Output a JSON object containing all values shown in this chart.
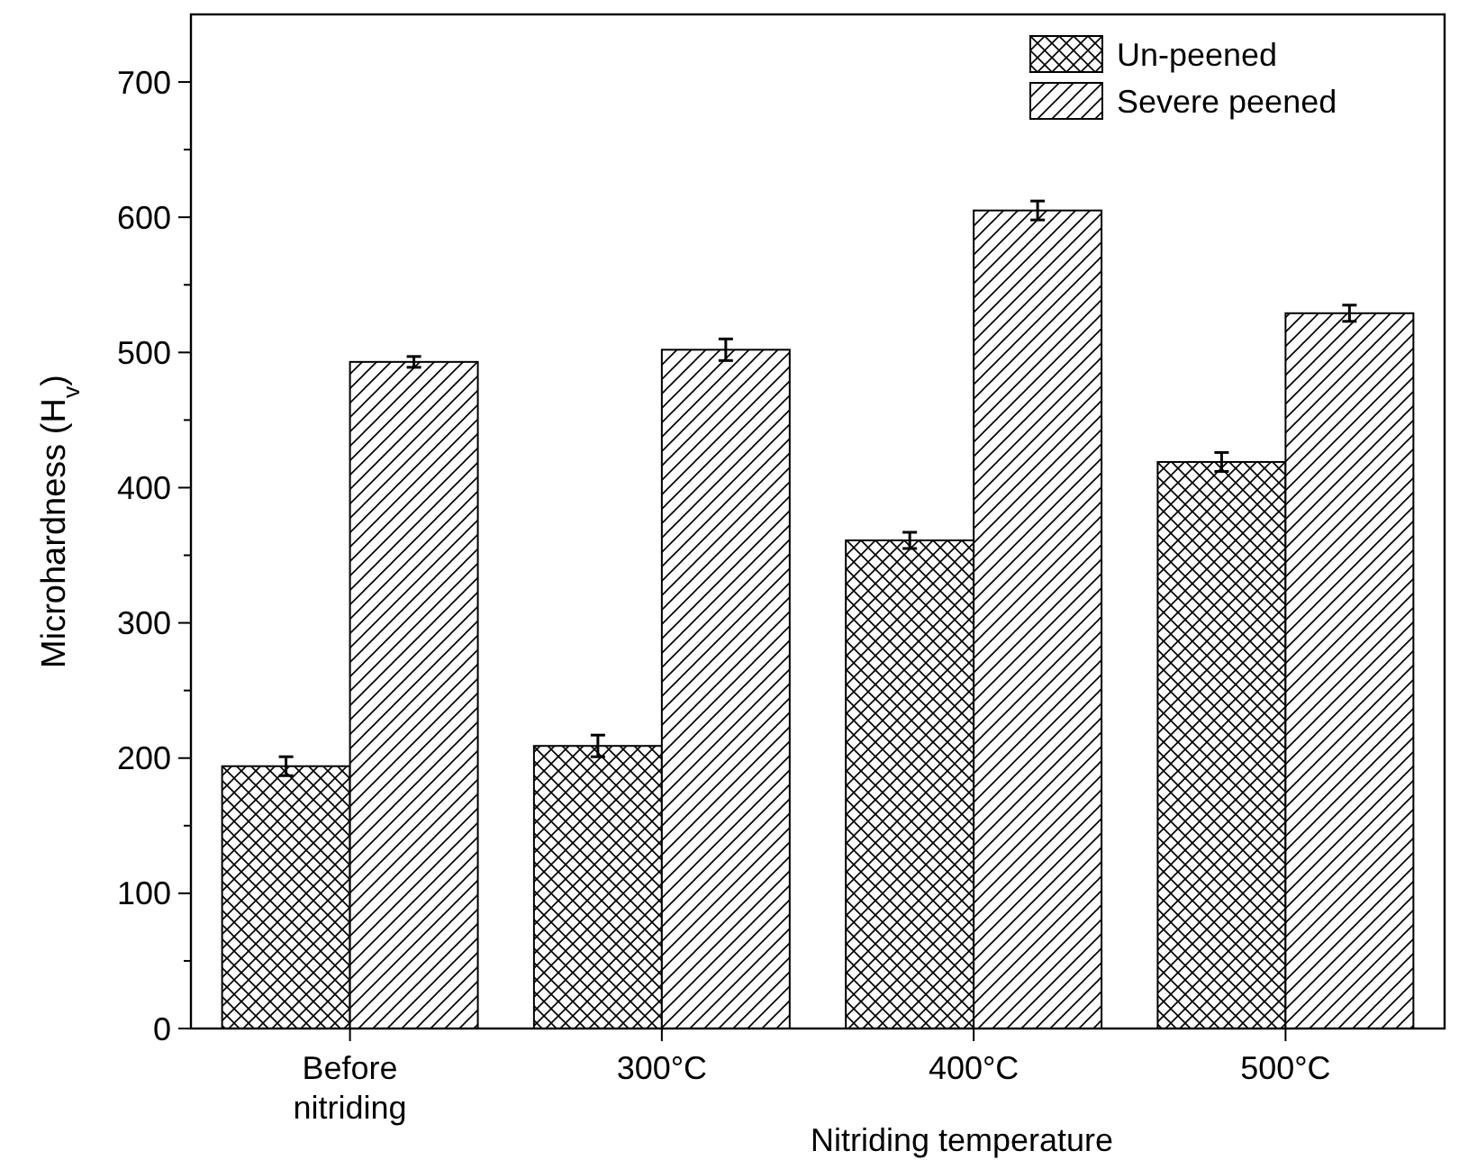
{
  "chart_data": {
    "type": "bar",
    "xlabel": "Nitriding temperature",
    "ylabel": "Microhardness (H$_{v}$)",
    "categories": [
      "Before nitriding",
      "300°C",
      "400°C",
      "500°C"
    ],
    "series": [
      {
        "name": "Un-peened",
        "color": "#000000",
        "values": [
          194,
          209,
          361,
          419
        ],
        "errors": [
          7,
          8,
          6,
          7
        ]
      },
      {
        "name": "Severe peened",
        "color": "#000000",
        "values": [
          493,
          502,
          605,
          529
        ],
        "errors": [
          4,
          8,
          7,
          6
        ]
      }
    ],
    "ylim": [
      0,
      750
    ],
    "yticks": [
      0,
      100,
      200,
      300,
      400,
      500,
      600,
      700
    ],
    "grid": false,
    "legend": "top right"
  }
}
